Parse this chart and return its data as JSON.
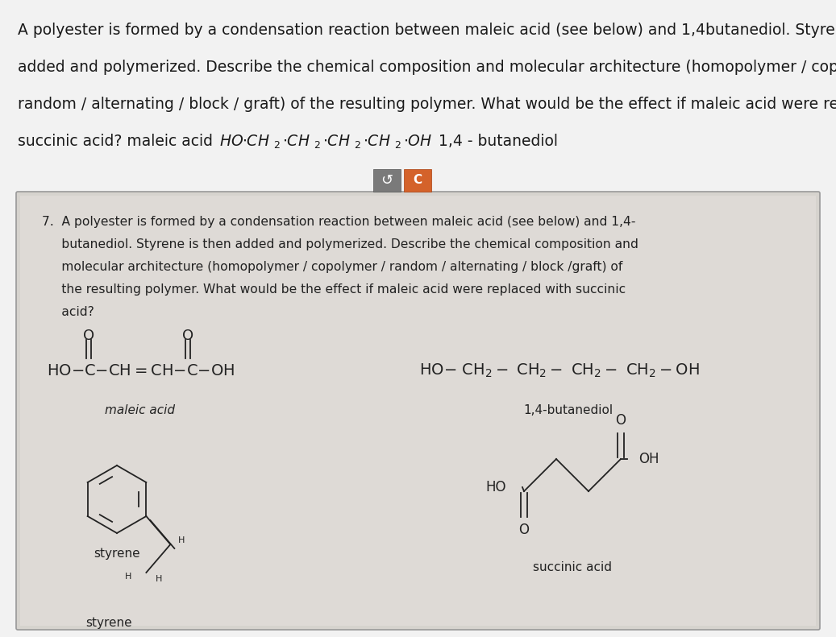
{
  "bg_color": "#f2f2f2",
  "top_text_lines": [
    "A polyester is formed by a condensation reaction between maleic acid (see below) and 1,4butanediol. Styrene is then",
    "added and polymerized. Describe the chemical composition and molecular architecture (homopolymer / copolymer /",
    "random / alternating / block / graft) of the resulting polymer. What would be the effect if maleic acid were replaced with",
    "succinic acid? maleic acid "
  ],
  "card_paper_color": "#d6d3ce",
  "card_inner_color": "#dedad6",
  "question_lines": [
    "7.  A polyester is formed by a condensation reaction between maleic acid (see below) and 1,4-",
    "     butanediol. Styrene is then added and polymerized. Describe the chemical composition and",
    "     molecular architecture (homopolymer / copolymer / random / alternating / block /graft) of",
    "     the resulting polymer. What would be the effect if maleic acid were replaced with succinic",
    "     acid?"
  ],
  "maleic_label": "maleic acid",
  "butanediol_label": "1,4-butanediol",
  "styrene_label": "styrene",
  "succinic_label": "succinic acid",
  "btn1_color": "#7a7a7a",
  "btn2_color": "#d4622a",
  "text_color": "#1a1a1a",
  "card_text_color": "#222222"
}
